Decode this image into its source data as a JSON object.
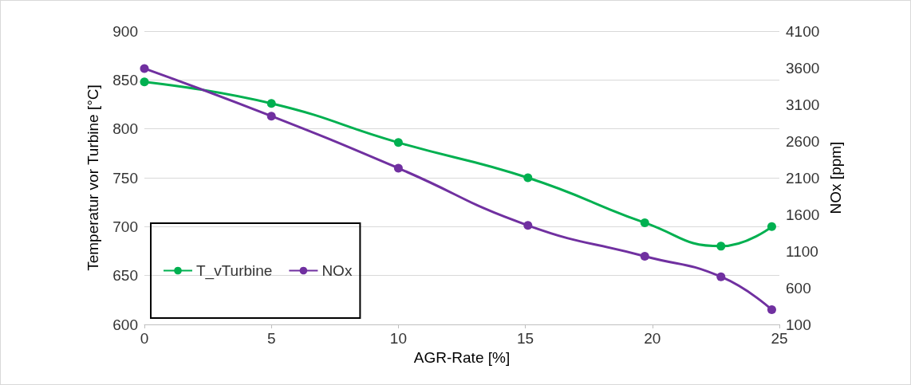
{
  "chart_data": {
    "type": "line",
    "xlabel": "AGR-Rate [%]",
    "ylabel": "Temperatur vor Turbine [°C]",
    "y2label": "NOx [ppm]",
    "xlim": [
      0,
      25
    ],
    "xticks": [
      0,
      5,
      10,
      15,
      20,
      25
    ],
    "ylim": [
      600,
      900
    ],
    "yticks": [
      600,
      650,
      700,
      750,
      800,
      850,
      900
    ],
    "y2lim": [
      100,
      4100
    ],
    "y2ticks": [
      100,
      600,
      1100,
      1600,
      2100,
      2600,
      3100,
      3600,
      4100
    ],
    "grid": "y",
    "legend": "bottom left",
    "marker": "circle",
    "line_style": "solid",
    "series": [
      {
        "name": "T_vTurbine",
        "color": "#00b050",
        "x": [
          0,
          5,
          10,
          15.1,
          19.7,
          22.7,
          24.7
        ],
        "values": [
          848,
          826,
          786,
          750,
          704,
          680,
          700
        ]
      },
      {
        "name": "NOx",
        "color": "#7030a0",
        "axis": "y2",
        "x": [
          0,
          5,
          10,
          15.1,
          19.7,
          22.7,
          24.7
        ],
        "values": [
          3590,
          2940,
          2230,
          1450,
          1030,
          750,
          300
        ]
      }
    ]
  }
}
